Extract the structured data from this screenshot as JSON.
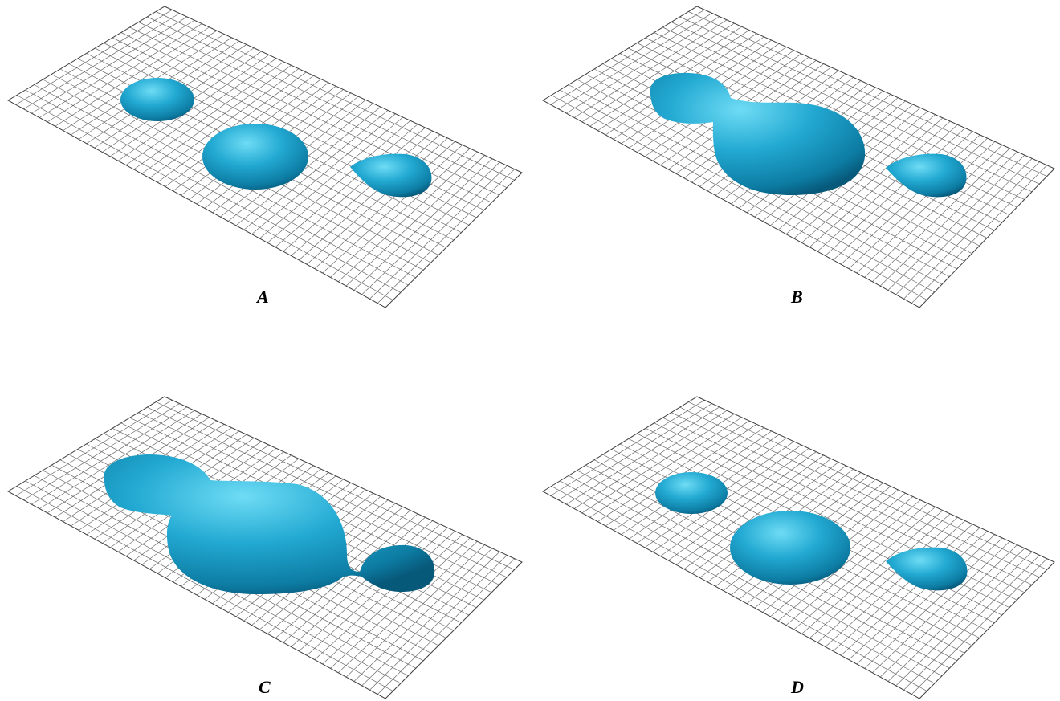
{
  "colors": {
    "blob_fill": "#1fa6cf",
    "blob_light": "#56d2f0",
    "blob_dark": "#0b6d92",
    "mesh_stroke": "#6a6a6a",
    "background": "#ffffff"
  },
  "panels": [
    {
      "label": "A",
      "blob_count": 3,
      "state": "three separate droplets"
    },
    {
      "label": "B",
      "blob_count": 2,
      "state": "left two droplets merged"
    },
    {
      "label": "C",
      "blob_count": 1,
      "state": "all droplets merged"
    },
    {
      "label": "D",
      "blob_count": 3,
      "state": "three separate droplets"
    }
  ]
}
